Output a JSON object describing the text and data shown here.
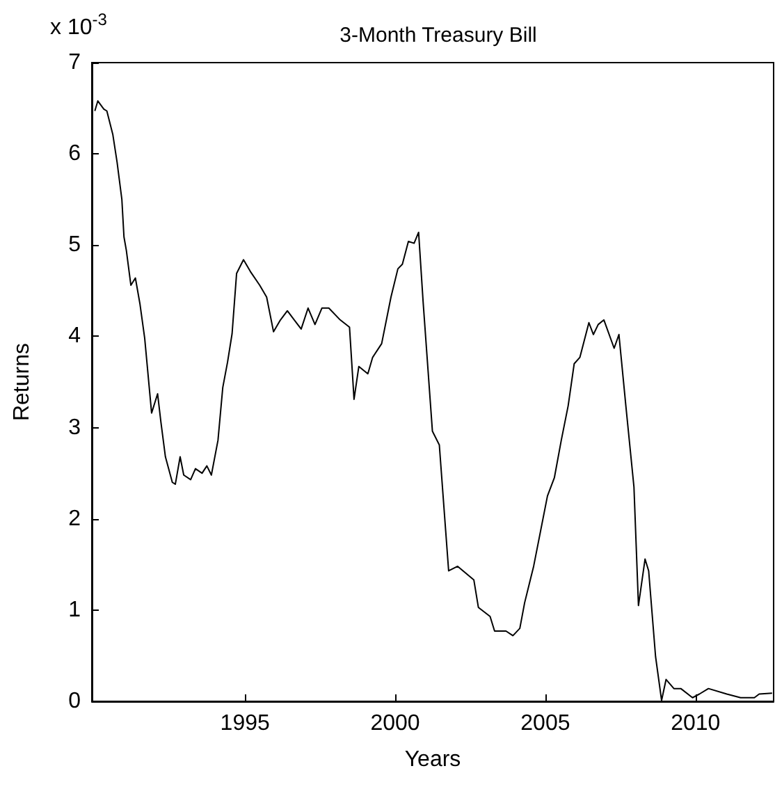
{
  "chart_data": {
    "type": "line",
    "title": "3-Month Treasury Bill",
    "xlabel": "Years",
    "ylabel": "Returns",
    "annotations": [
      "x 10$^{-3}$"
    ],
    "x": [
      1990.0,
      1990.1,
      1990.3,
      1990.4,
      1990.6,
      1990.74,
      1990.9,
      1990.97,
      1991.05,
      1991.2,
      1991.35,
      1991.5,
      1991.66,
      1991.89,
      1992.09,
      1992.2,
      1992.35,
      1992.58,
      1992.68,
      1992.84,
      1992.96,
      1993.19,
      1993.35,
      1993.57,
      1993.73,
      1993.88,
      1994.1,
      1994.26,
      1994.42,
      1994.57,
      1994.72,
      1994.95,
      1995.18,
      1995.49,
      1995.72,
      1995.95,
      1996.18,
      1996.41,
      1996.64,
      1996.87,
      1997.1,
      1997.33,
      1997.56,
      1997.79,
      1998.17,
      1998.48,
      1998.63,
      1998.79,
      1999.09,
      1999.25,
      1999.55,
      1999.86,
      2000.09,
      2000.24,
      2000.44,
      2000.63,
      2000.78,
      2000.93,
      2001.24,
      2001.47,
      2001.78,
      2002.08,
      2002.62,
      2002.77,
      2003.16,
      2003.31,
      2003.69,
      2003.92,
      2004.15,
      2004.31,
      2004.61,
      2005.07,
      2005.3,
      2005.53,
      2005.76,
      2005.96,
      2006.15,
      2006.45,
      2006.6,
      2006.76,
      2006.95,
      2007.29,
      2007.45,
      2007.68,
      2007.95,
      2008.1,
      2008.32,
      2008.44,
      2008.67,
      2008.87,
      2009.02,
      2009.28,
      2009.51,
      2009.9,
      2010.13,
      2010.43,
      2011.04,
      2011.5,
      2011.96,
      2012.12,
      2012.55
    ],
    "series": [
      {
        "color": "#000000",
        "values": [
          6.47,
          6.58,
          6.49,
          6.47,
          6.21,
          5.91,
          5.5,
          5.09,
          4.94,
          4.56,
          4.64,
          4.36,
          3.98,
          3.16,
          3.37,
          3.06,
          2.68,
          2.4,
          2.38,
          2.68,
          2.48,
          2.43,
          2.55,
          2.5,
          2.58,
          2.48,
          2.86,
          3.44,
          3.72,
          4.03,
          4.69,
          4.84,
          4.71,
          4.56,
          4.43,
          4.05,
          4.18,
          4.28,
          4.18,
          4.08,
          4.31,
          4.13,
          4.31,
          4.31,
          4.18,
          4.1,
          3.31,
          3.67,
          3.59,
          3.77,
          3.92,
          4.43,
          4.74,
          4.79,
          5.04,
          5.02,
          5.14,
          4.38,
          2.96,
          2.81,
          1.43,
          1.48,
          1.33,
          1.03,
          0.93,
          0.77,
          0.77,
          0.72,
          0.8,
          1.08,
          1.48,
          2.25,
          2.45,
          2.86,
          3.24,
          3.7,
          3.77,
          4.15,
          4.02,
          4.13,
          4.18,
          3.87,
          4.02,
          3.24,
          2.35,
          1.05,
          1.56,
          1.43,
          0.49,
          0.01,
          0.24,
          0.14,
          0.14,
          0.04,
          0.08,
          0.14,
          0.08,
          0.04,
          0.04,
          0.08,
          0.09
        ]
      }
    ],
    "xlim": [
      1989.9,
      2012.6
    ],
    "xticks": [
      1995,
      2000,
      2005,
      2010
    ],
    "ylim": [
      0,
      7
    ],
    "yticks": [
      0,
      1,
      2,
      3,
      4,
      5,
      6,
      7
    ],
    "grid": false,
    "marker": "none",
    "line_style": "solid"
  }
}
